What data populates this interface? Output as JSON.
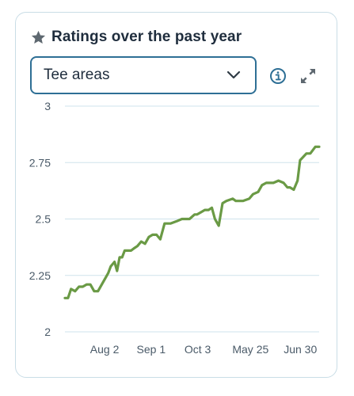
{
  "header": {
    "title": "Ratings over the past year",
    "icon": "star-icon"
  },
  "filter": {
    "selected": "Tee areas",
    "icon": "chevron-down-icon"
  },
  "actions": {
    "info_icon": "info-icon",
    "expand_icon": "expand-icon"
  },
  "colors": {
    "line": "#6a9a45",
    "grid": "#cfe3ec",
    "border": "#c9dde6",
    "select_border": "#2e6f95",
    "icon": "#2e6f95",
    "text": "#1f2d3d"
  },
  "chart_data": {
    "type": "line",
    "title": "Ratings over the past year",
    "xlabel": "",
    "ylabel": "",
    "ylim": [
      2,
      3
    ],
    "yticks": [
      "3",
      "2.75",
      "2.5",
      "2.25",
      "2"
    ],
    "ytick_values": [
      3,
      2.75,
      2.5,
      2.25,
      2
    ],
    "xticks": [
      "Aug 2",
      "Sep 1",
      "Oct 3",
      "May 25",
      "Jun 30"
    ],
    "xtick_positions": [
      0.156,
      0.339,
      0.522,
      0.73,
      0.926
    ],
    "grid": true,
    "legend": "none",
    "series": [
      {
        "x": [
          0,
          0.012,
          0.024,
          0.04,
          0.055,
          0.07,
          0.085,
          0.1,
          0.115,
          0.13,
          0.145,
          0.16,
          0.17,
          0.18,
          0.195,
          0.205,
          0.215,
          0.225,
          0.235,
          0.248,
          0.26,
          0.272,
          0.285,
          0.3,
          0.315,
          0.33,
          0.345,
          0.36,
          0.375,
          0.392,
          0.408,
          0.415,
          0.44,
          0.46,
          0.475,
          0.49,
          0.51,
          0.52,
          0.535,
          0.55,
          0.565,
          0.578,
          0.59,
          0.605,
          0.62,
          0.635,
          0.66,
          0.672,
          0.7,
          0.725,
          0.74,
          0.76,
          0.775,
          0.792,
          0.806,
          0.82,
          0.84,
          0.86,
          0.875,
          0.885,
          0.9,
          0.915,
          0.925,
          0.95,
          0.965,
          0.985,
          1.0
        ],
        "values": [
          2.15,
          2.15,
          2.19,
          2.18,
          2.2,
          2.2,
          2.21,
          2.21,
          2.18,
          2.18,
          2.21,
          2.24,
          2.26,
          2.29,
          2.31,
          2.27,
          2.33,
          2.33,
          2.36,
          2.36,
          2.36,
          2.37,
          2.38,
          2.4,
          2.39,
          2.42,
          2.43,
          2.43,
          2.41,
          2.48,
          2.48,
          2.48,
          2.49,
          2.5,
          2.5,
          2.5,
          2.52,
          2.52,
          2.53,
          2.54,
          2.54,
          2.55,
          2.5,
          2.47,
          2.57,
          2.58,
          2.59,
          2.58,
          2.58,
          2.59,
          2.61,
          2.62,
          2.65,
          2.66,
          2.66,
          2.66,
          2.67,
          2.66,
          2.64,
          2.64,
          2.63,
          2.67,
          2.76,
          2.79,
          2.79,
          2.82,
          2.82
        ]
      }
    ]
  }
}
